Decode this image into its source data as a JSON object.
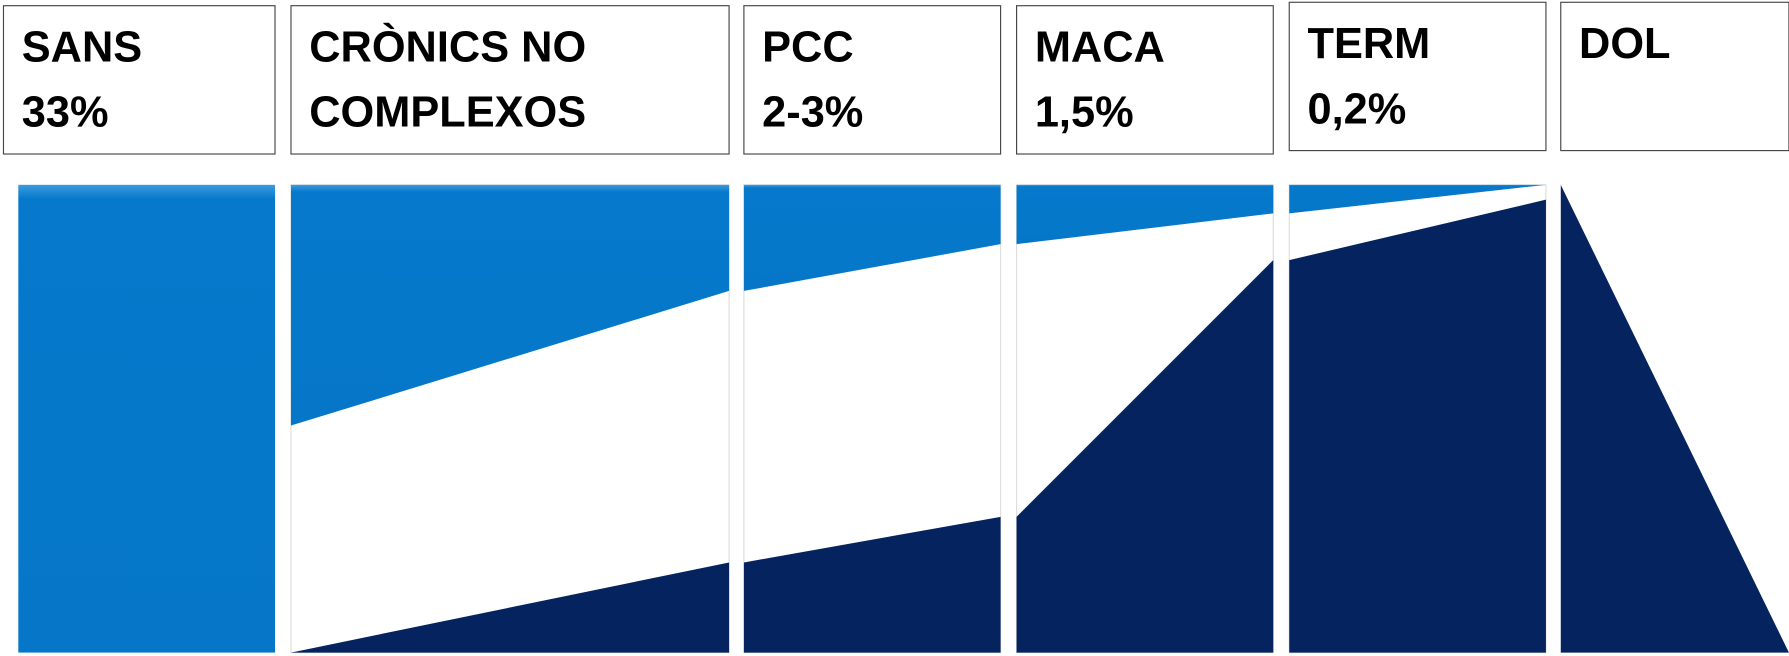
{
  "boxes": [
    {
      "lines": [
        "SANS",
        "33%"
      ]
    },
    {
      "lines": [
        "CRÒNICS NO",
        "COMPLEXOS"
      ]
    },
    {
      "lines": [
        "PCC",
        "2-3%"
      ]
    },
    {
      "lines": [
        "MACA",
        "1,5%"
      ]
    },
    {
      "lines": [
        "TERM",
        "0,2%"
      ]
    },
    {
      "lines": [
        "DOL"
      ]
    }
  ]
}
